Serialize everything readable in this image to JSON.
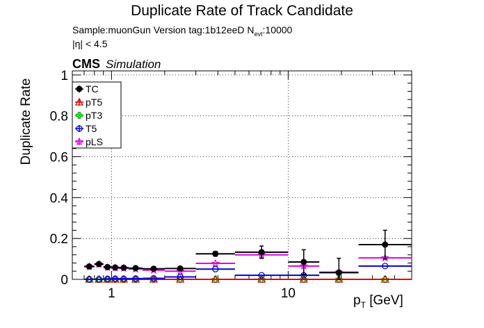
{
  "chart_data": {
    "type": "scatter",
    "title": "Duplicate Rate of Track Candidate",
    "subtitle_line1": "Sample:muonGun   Version tag:1b12eeD  N",
    "subtitle_nevt_sub": "evt",
    "subtitle_nevt_val": ":10000",
    "subtitle_line2": "|η| < 4.5",
    "cms_label": "CMS",
    "cms_sublabel": "Simulation",
    "ylabel": "Duplicate Rate",
    "xlabel_main": "p",
    "xlabel_sub": "T",
    "xlabel_unit": " [GeV]",
    "xscale": "log",
    "xlim": [
      0.6,
      50
    ],
    "ylim": [
      0,
      1.02
    ],
    "grid": true,
    "legend_position": "top-left",
    "x_tick_labels": [
      {
        "value": 1,
        "label": "1"
      },
      {
        "value": 10,
        "label": "10"
      }
    ],
    "y_tick_labels": [
      {
        "value": 0,
        "label": "0"
      },
      {
        "value": 0.2,
        "label": "0.2"
      },
      {
        "value": 0.4,
        "label": "0.4"
      },
      {
        "value": 0.6,
        "label": "0.6"
      },
      {
        "value": 0.8,
        "label": "0.8"
      },
      {
        "value": 1,
        "label": "1"
      }
    ],
    "series": [
      {
        "name": "TC",
        "color": "#000000",
        "marker": "circle-filled",
        "points": [
          {
            "xlo": 0.7,
            "xhi": 0.8,
            "y": 0.063,
            "err": 0.008
          },
          {
            "xlo": 0.8,
            "xhi": 0.9,
            "y": 0.075,
            "err": 0.008
          },
          {
            "xlo": 0.9,
            "xhi": 1.0,
            "y": 0.06,
            "err": 0.007
          },
          {
            "xlo": 1.0,
            "xhi": 1.1,
            "y": 0.058,
            "err": 0.007
          },
          {
            "xlo": 1.1,
            "xhi": 1.25,
            "y": 0.057,
            "err": 0.007
          },
          {
            "xlo": 1.25,
            "xhi": 1.5,
            "y": 0.055,
            "err": 0.006
          },
          {
            "xlo": 1.5,
            "xhi": 2.0,
            "y": 0.052,
            "err": 0.006
          },
          {
            "xlo": 2.0,
            "xhi": 3.0,
            "y": 0.053,
            "err": 0.007
          },
          {
            "xlo": 3.0,
            "xhi": 5.0,
            "y": 0.125,
            "err": 0.012
          },
          {
            "xlo": 5.0,
            "xhi": 10.0,
            "y": 0.133,
            "err": 0.03
          },
          {
            "xlo": 10.0,
            "xhi": 15.0,
            "y": 0.085,
            "err": 0.06
          },
          {
            "xlo": 15.0,
            "xhi": 25.0,
            "y": 0.033,
            "err": 0.07
          },
          {
            "xlo": 25.0,
            "xhi": 50.0,
            "y": 0.17,
            "err": 0.07
          }
        ]
      },
      {
        "name": "pT5",
        "color": "#e00000",
        "marker": "triangle-open",
        "points": [
          {
            "xlo": 0.7,
            "xhi": 0.8,
            "y": 0.0
          },
          {
            "xlo": 0.8,
            "xhi": 0.9,
            "y": 0.0
          },
          {
            "xlo": 0.9,
            "xhi": 1.0,
            "y": 0.0
          },
          {
            "xlo": 1.0,
            "xhi": 1.1,
            "y": 0.0
          },
          {
            "xlo": 1.1,
            "xhi": 1.25,
            "y": 0.0
          },
          {
            "xlo": 1.25,
            "xhi": 1.5,
            "y": 0.0
          },
          {
            "xlo": 1.5,
            "xhi": 2.0,
            "y": 0.0
          },
          {
            "xlo": 2.0,
            "xhi": 3.0,
            "y": 0.0
          },
          {
            "xlo": 3.0,
            "xhi": 5.0,
            "y": 0.0
          },
          {
            "xlo": 5.0,
            "xhi": 10.0,
            "y": 0.0
          },
          {
            "xlo": 10.0,
            "xhi": 15.0,
            "y": 0.0
          },
          {
            "xlo": 15.0,
            "xhi": 25.0,
            "y": 0.0
          },
          {
            "xlo": 25.0,
            "xhi": 50.0,
            "y": 0.0
          }
        ]
      },
      {
        "name": "pT3",
        "color": "#00cc00",
        "marker": "cross-open",
        "points": [
          {
            "xlo": 0.7,
            "xhi": 0.8,
            "y": 0.0
          },
          {
            "xlo": 0.8,
            "xhi": 0.9,
            "y": 0.0
          },
          {
            "xlo": 0.9,
            "xhi": 1.0,
            "y": 0.0
          },
          {
            "xlo": 1.0,
            "xhi": 1.1,
            "y": 0.0
          },
          {
            "xlo": 1.1,
            "xhi": 1.25,
            "y": 0.0
          },
          {
            "xlo": 1.25,
            "xhi": 1.5,
            "y": 0.0
          },
          {
            "xlo": 1.5,
            "xhi": 2.0,
            "y": 0.0
          },
          {
            "xlo": 2.0,
            "xhi": 3.0,
            "y": 0.0
          },
          {
            "xlo": 3.0,
            "xhi": 5.0,
            "y": 0.0
          },
          {
            "xlo": 5.0,
            "xhi": 10.0,
            "y": 0.0
          },
          {
            "xlo": 10.0,
            "xhi": 15.0,
            "y": 0.0
          },
          {
            "xlo": 15.0,
            "xhi": 25.0,
            "y": 0.0
          },
          {
            "xlo": 25.0,
            "xhi": 50.0,
            "y": 0.0
          }
        ]
      },
      {
        "name": "T5",
        "color": "#0000dd",
        "marker": "circle-open",
        "points": [
          {
            "xlo": 0.7,
            "xhi": 0.8,
            "y": 0.0
          },
          {
            "xlo": 0.8,
            "xhi": 0.9,
            "y": 0.0
          },
          {
            "xlo": 0.9,
            "xhi": 1.0,
            "y": 0.002
          },
          {
            "xlo": 1.0,
            "xhi": 1.1,
            "y": 0.003
          },
          {
            "xlo": 1.1,
            "xhi": 1.25,
            "y": 0.003
          },
          {
            "xlo": 1.25,
            "xhi": 1.5,
            "y": 0.004
          },
          {
            "xlo": 1.5,
            "xhi": 2.0,
            "y": 0.005
          },
          {
            "xlo": 2.0,
            "xhi": 3.0,
            "y": 0.012
          },
          {
            "xlo": 3.0,
            "xhi": 5.0,
            "y": 0.05
          },
          {
            "xlo": 5.0,
            "xhi": 10.0,
            "y": 0.02
          },
          {
            "xlo": 10.0,
            "xhi": 15.0,
            "y": 0.02
          },
          {
            "xlo": 15.0,
            "xhi": 25.0,
            "y": 0.033
          },
          {
            "xlo": 25.0,
            "xhi": 50.0,
            "y": 0.065
          }
        ]
      },
      {
        "name": "pLS",
        "color": "#dd00dd",
        "marker": "star-open",
        "points": [
          {
            "xlo": 0.7,
            "xhi": 0.8,
            "y": 0.062
          },
          {
            "xlo": 0.8,
            "xhi": 0.9,
            "y": 0.073
          },
          {
            "xlo": 0.9,
            "xhi": 1.0,
            "y": 0.058
          },
          {
            "xlo": 1.0,
            "xhi": 1.1,
            "y": 0.056
          },
          {
            "xlo": 1.1,
            "xhi": 1.25,
            "y": 0.054
          },
          {
            "xlo": 1.25,
            "xhi": 1.5,
            "y": 0.05
          },
          {
            "xlo": 1.5,
            "xhi": 2.0,
            "y": 0.045
          },
          {
            "xlo": 2.0,
            "xhi": 3.0,
            "y": 0.04
          },
          {
            "xlo": 3.0,
            "xhi": 5.0,
            "y": 0.078
          },
          {
            "xlo": 5.0,
            "xhi": 10.0,
            "y": 0.12
          },
          {
            "xlo": 10.0,
            "xhi": 15.0,
            "y": 0.065
          },
          {
            "xlo": 15.0,
            "xhi": 25.0,
            "y": 0.035
          },
          {
            "xlo": 25.0,
            "xhi": 50.0,
            "y": 0.105
          }
        ]
      }
    ]
  }
}
